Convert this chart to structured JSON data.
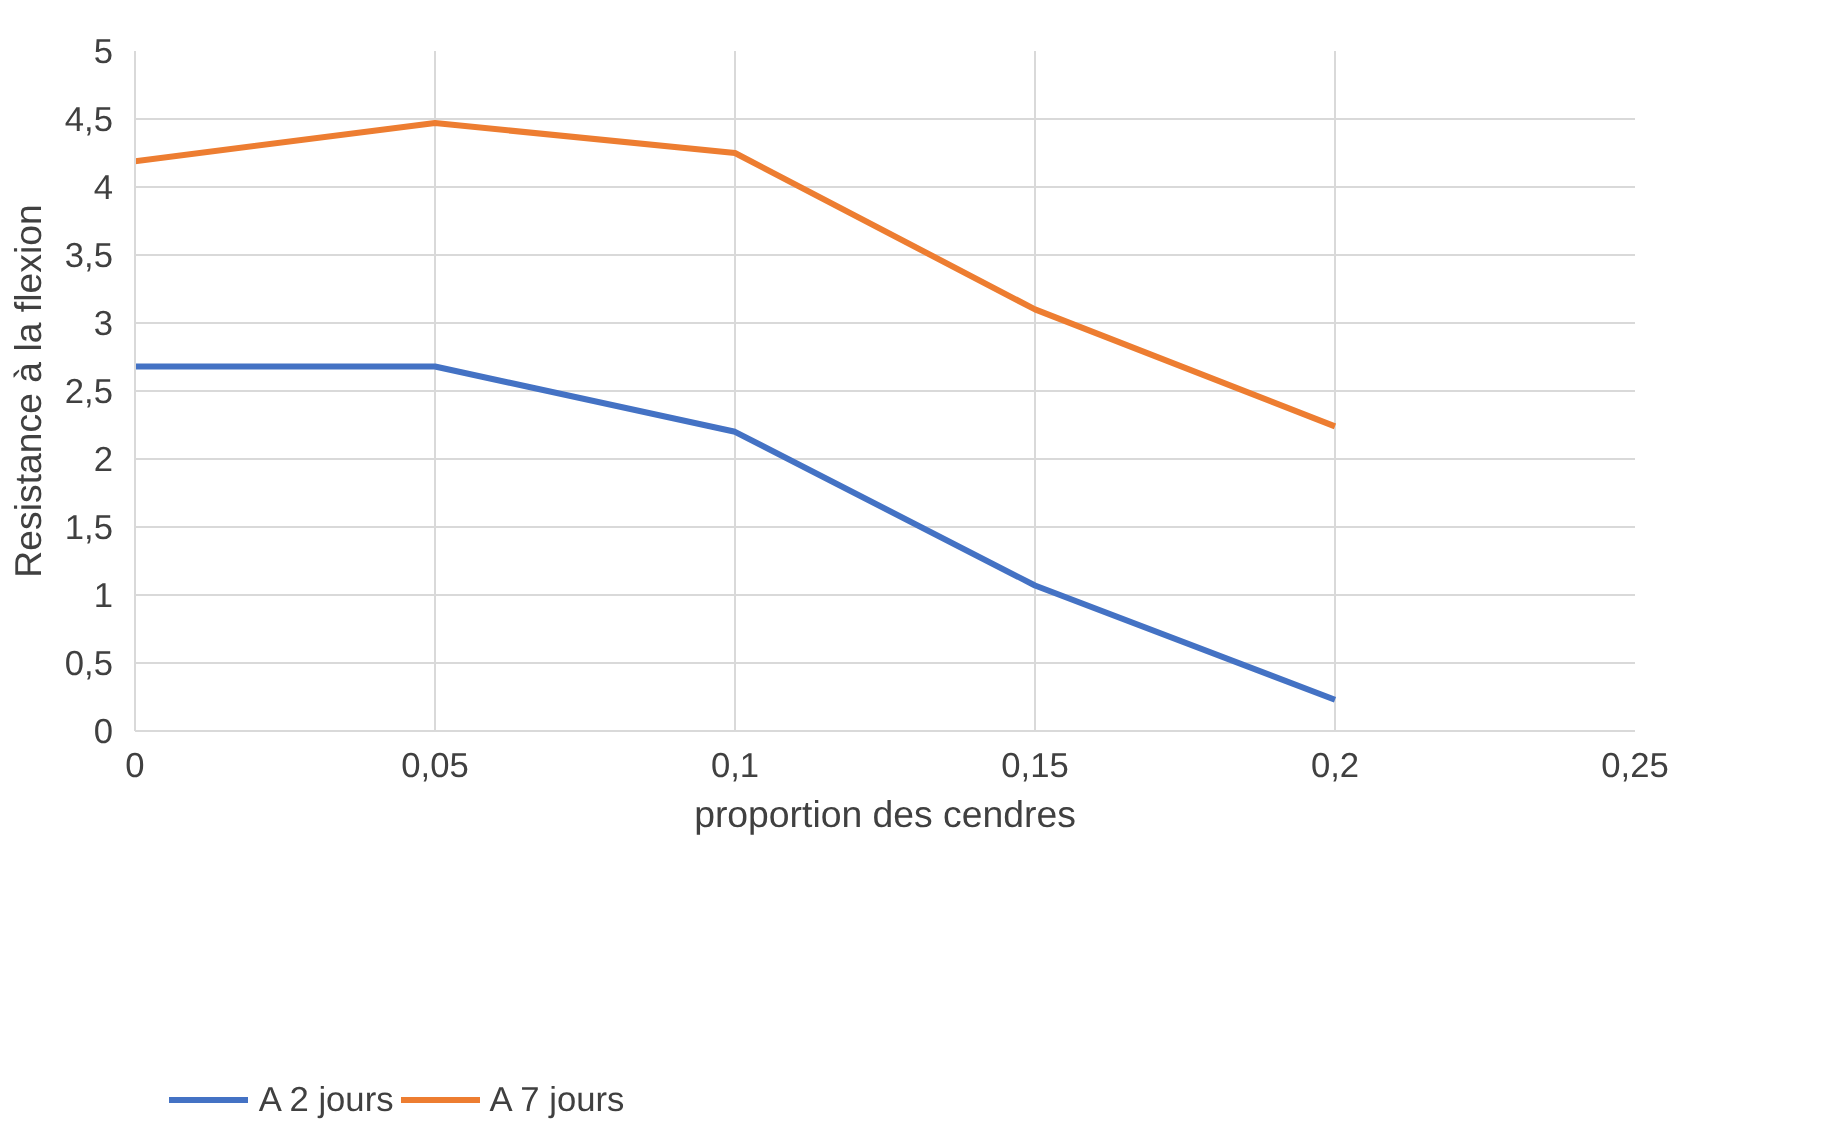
{
  "chart_data": {
    "type": "line",
    "xlabel": "proportion des cendres",
    "ylabel": "Resistance à la flexion",
    "x": [
      0,
      0.05,
      0.1,
      0.15,
      0.2
    ],
    "series": [
      {
        "name": "A 2 jours",
        "color": "#4472c4",
        "values": [
          2.68,
          2.68,
          2.2,
          1.07,
          0.23
        ]
      },
      {
        "name": "A 7 jours",
        "color": "#ed7d31",
        "values": [
          4.19,
          4.47,
          4.25,
          3.1,
          2.24
        ]
      }
    ],
    "xlim": [
      0,
      0.25
    ],
    "xticks": [
      {
        "value": 0,
        "label": "0"
      },
      {
        "value": 0.05,
        "label": "0,05"
      },
      {
        "value": 0.1,
        "label": "0,1"
      },
      {
        "value": 0.15,
        "label": "0,15"
      },
      {
        "value": 0.2,
        "label": "0,2"
      },
      {
        "value": 0.25,
        "label": "0,25"
      }
    ],
    "ylim": [
      0,
      5
    ],
    "yticks": [
      {
        "value": 0,
        "label": "0"
      },
      {
        "value": 0.5,
        "label": "0,5"
      },
      {
        "value": 1,
        "label": "1"
      },
      {
        "value": 1.5,
        "label": "1,5"
      },
      {
        "value": 2,
        "label": "2"
      },
      {
        "value": 2.5,
        "label": "2,5"
      },
      {
        "value": 3,
        "label": "3"
      },
      {
        "value": 3.5,
        "label": "3,5"
      },
      {
        "value": 4,
        "label": "4"
      },
      {
        "value": 4.5,
        "label": "4,5"
      },
      {
        "value": 5,
        "label": "5"
      }
    ],
    "grid": true,
    "legend": "bottom",
    "marker": "none",
    "line_style": "solid"
  }
}
